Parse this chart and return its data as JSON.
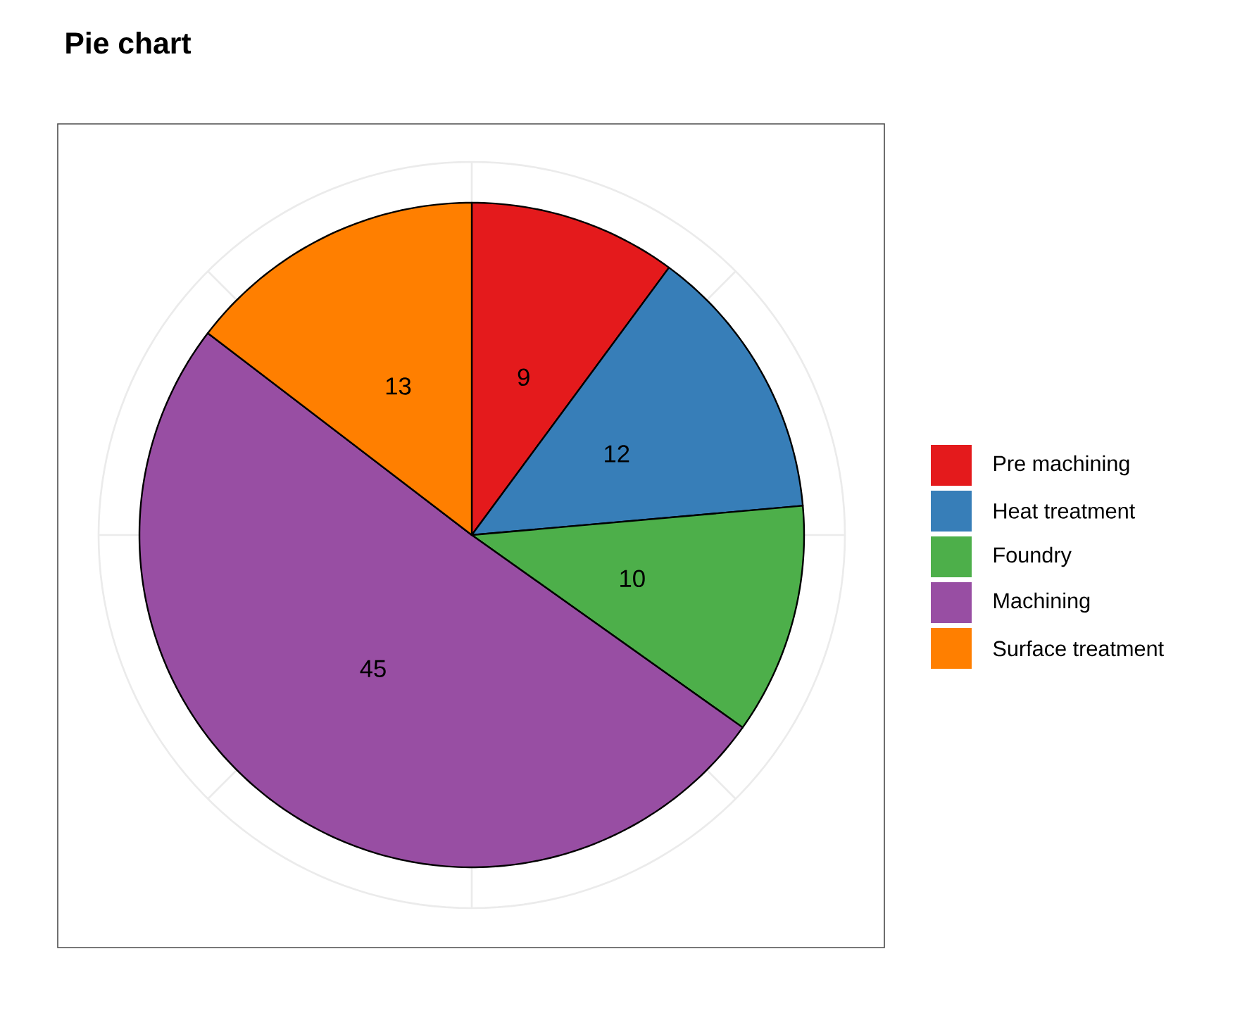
{
  "chart_data": {
    "type": "pie",
    "title": "Pie chart",
    "categories": [
      "Pre machining",
      "Heat treatment",
      "Foundry",
      "Machining",
      "Surface treatment"
    ],
    "values": [
      9,
      12,
      10,
      45,
      13
    ],
    "colors": [
      "#e41a1c",
      "#377eb8",
      "#4daf4a",
      "#984ea3",
      "#ff7f00"
    ],
    "data_labels": true,
    "grid": true,
    "legend": "right"
  }
}
